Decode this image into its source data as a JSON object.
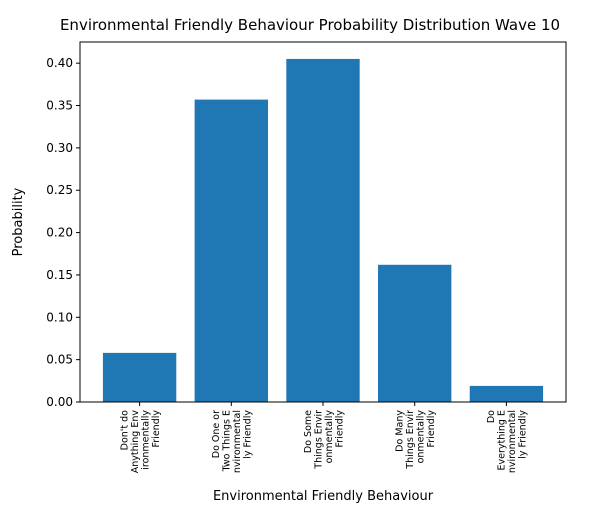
{
  "chart_data": {
    "type": "bar",
    "title": "Environmental Friendly Behaviour Probability Distribution Wave 10",
    "xlabel": "Environmental Friendly Behaviour",
    "ylabel": "Probability",
    "categories": [
      [
        "Don't do",
        "Anything Env",
        "ironmentally",
        "Friendly"
      ],
      [
        "Do One or",
        "Two Things E",
        "nvironmental",
        "ly Friendly"
      ],
      [
        "Do Some",
        "Things Envir",
        "onmentally",
        "Friendly"
      ],
      [
        "Do Many",
        "Things Envir",
        "onmentally",
        "Friendly"
      ],
      [
        "Do",
        "Everything E",
        "nvironmental",
        "ly Friendly"
      ]
    ],
    "values": [
      0.058,
      0.357,
      0.405,
      0.162,
      0.019
    ],
    "ylim": [
      0,
      0.425
    ],
    "yticks": [
      0.0,
      0.05,
      0.1,
      0.15,
      0.2,
      0.25,
      0.3,
      0.35,
      0.4
    ],
    "ytick_labels": [
      "0.00",
      "0.05",
      "0.10",
      "0.15",
      "0.20",
      "0.25",
      "0.30",
      "0.35",
      "0.40"
    ],
    "bar_color": "#1f77b4",
    "grid": false,
    "legend": "none"
  }
}
